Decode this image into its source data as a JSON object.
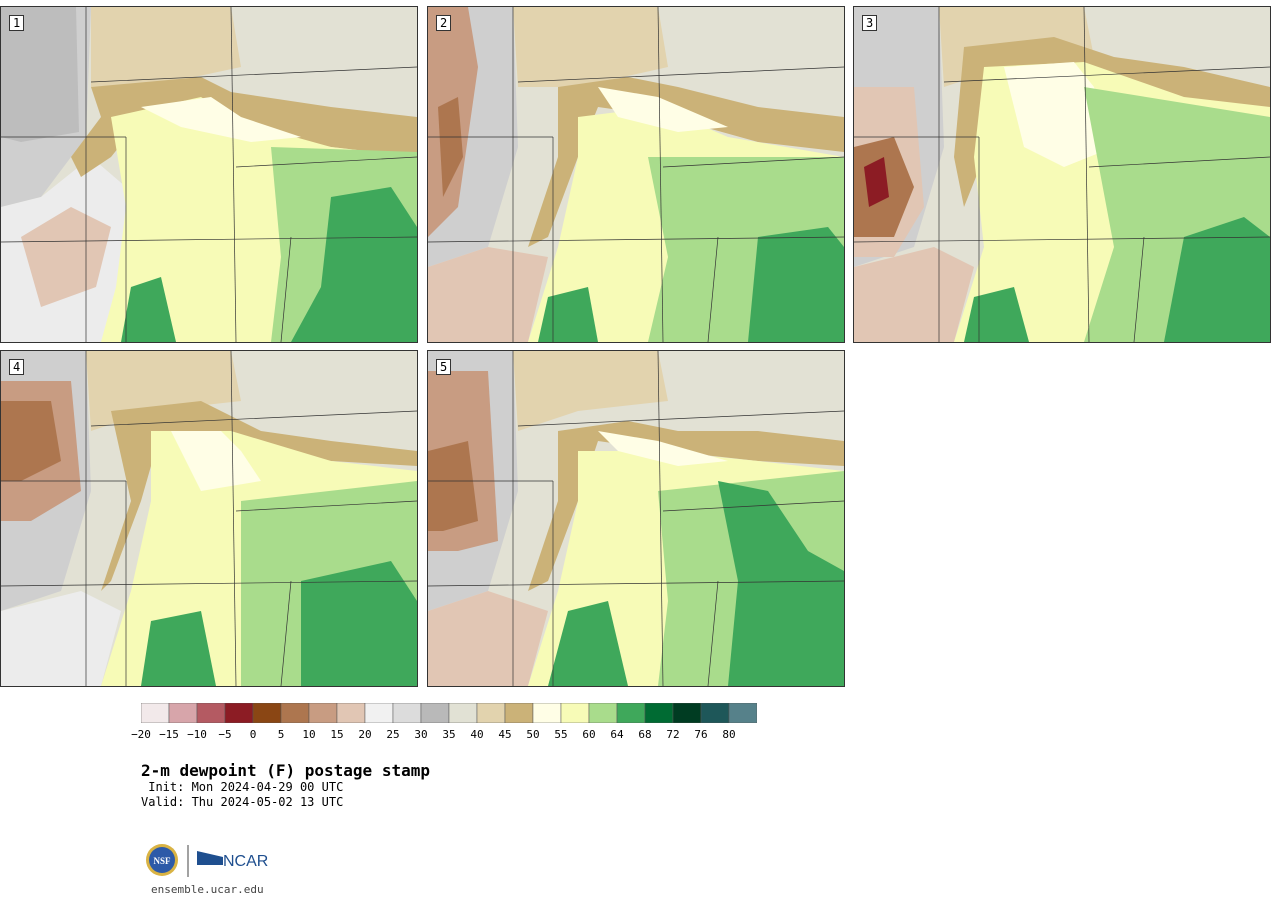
{
  "panels": [
    {
      "label": "1"
    },
    {
      "label": "2"
    },
    {
      "label": "3"
    },
    {
      "label": "4"
    },
    {
      "label": "5"
    }
  ],
  "colorbar": {
    "tick_labels": [
      "-20",
      "-15",
      "-10",
      "-5",
      "0",
      "5",
      "10",
      "15",
      "20",
      "25",
      "30",
      "35",
      "40",
      "45",
      "50",
      "55",
      "60",
      "64",
      "68",
      "72",
      "76",
      "80"
    ],
    "colors": [
      "#f2e9ea",
      "#d7a5aa",
      "#b45a62",
      "#8c1c24",
      "#8a4614",
      "#ad764f",
      "#c89c82",
      "#e1c6b4",
      "#f1f1f1",
      "#dcdcdc",
      "#b9b9b9",
      "#e1e1d4",
      "#e2d3ae",
      "#cbb278",
      "#fffee6",
      "#f7fbb7",
      "#a9dc8c",
      "#3fa85b",
      "#006b33",
      "#003c22",
      "#1e5759",
      "#56818a"
    ]
  },
  "title": "2-m dewpoint (F) postage stamp",
  "init": " Init: Mon 2024-04-29 00 UTC",
  "valid": "Valid: Thu 2024-05-02 13 UTC",
  "logo": {
    "nsf": "NSF",
    "ncar": "NCAR"
  },
  "site": "ensemble.ucar.edu"
}
